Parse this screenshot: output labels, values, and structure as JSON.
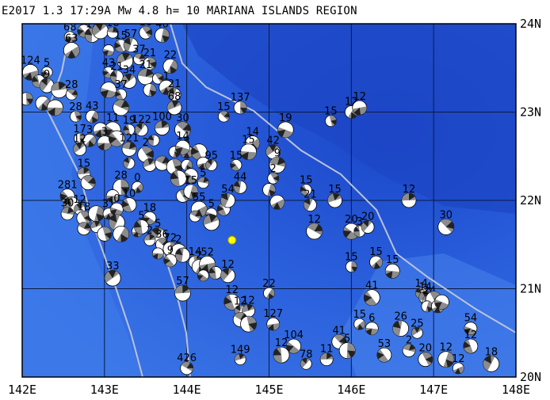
{
  "title": "E2017 1.3 17:29A Mw 4.8 h= 10 MARIANA ISLANDS REGION",
  "colors": {
    "sea_deep": "#1f4fd6",
    "sea_mid": "#2c64e0",
    "sea_shallow": "#4a86ee",
    "plate_boundary": "#b9c3da",
    "grid": "#0b1a40",
    "mechanism_compression": "#8c8c8c",
    "epicenter": "#ffff00"
  },
  "map": {
    "lon_min": 142,
    "lon_max": 148,
    "lat_min": 20,
    "lat_max": 24,
    "x_ticks": [
      "142E",
      "143E",
      "144E",
      "145E",
      "146E",
      "147E",
      "148E"
    ],
    "y_ticks": [
      "20N",
      "21N",
      "22N",
      "23N",
      "24N"
    ]
  },
  "epicenter": {
    "lon": 144.55,
    "lat": 21.55
  },
  "events": [
    {
      "lon": 142.58,
      "lat": 23.85,
      "label": "68"
    },
    {
      "lon": 142.75,
      "lat": 23.92,
      "label": "5"
    },
    {
      "lon": 142.85,
      "lat": 23.87,
      "label": "12"
    },
    {
      "lon": 142.95,
      "lat": 23.92,
      "label": "16"
    },
    {
      "lon": 143.1,
      "lat": 23.9,
      "label": "16"
    },
    {
      "lon": 143.5,
      "lat": 23.9,
      "label": "16"
    },
    {
      "lon": 143.7,
      "lat": 23.87,
      "label": "46"
    },
    {
      "lon": 142.6,
      "lat": 23.7,
      "label": "63"
    },
    {
      "lon": 143.05,
      "lat": 23.7,
      "label": ""
    },
    {
      "lon": 143.2,
      "lat": 23.75,
      "label": "15"
    },
    {
      "lon": 143.32,
      "lat": 23.76,
      "label": "57"
    },
    {
      "lon": 143.25,
      "lat": 23.58,
      "label": ""
    },
    {
      "lon": 143.42,
      "lat": 23.6,
      "label": "37"
    },
    {
      "lon": 143.55,
      "lat": 23.55,
      "label": "21"
    },
    {
      "lon": 143.8,
      "lat": 23.52,
      "label": "22"
    },
    {
      "lon": 142.1,
      "lat": 23.45,
      "label": "124"
    },
    {
      "lon": 142.3,
      "lat": 23.45,
      "label": "5"
    },
    {
      "lon": 142.2,
      "lat": 23.35,
      "label": ""
    },
    {
      "lon": 142.3,
      "lat": 23.3,
      "label": "9"
    },
    {
      "lon": 142.45,
      "lat": 23.25,
      "label": ""
    },
    {
      "lon": 142.6,
      "lat": 23.2,
      "label": "28"
    },
    {
      "lon": 142.05,
      "lat": 23.15,
      "label": ""
    },
    {
      "lon": 142.25,
      "lat": 23.1,
      "label": ""
    },
    {
      "lon": 142.4,
      "lat": 23.05,
      "label": ""
    },
    {
      "lon": 143.05,
      "lat": 23.45,
      "label": "43"
    },
    {
      "lon": 143.15,
      "lat": 23.4,
      "label": "21"
    },
    {
      "lon": 143.3,
      "lat": 23.35,
      "label": "34"
    },
    {
      "lon": 143.5,
      "lat": 23.4,
      "label": "21"
    },
    {
      "lon": 143.65,
      "lat": 23.38,
      "label": ""
    },
    {
      "lon": 143.55,
      "lat": 23.25,
      "label": ""
    },
    {
      "lon": 143.75,
      "lat": 23.28,
      "label": "1"
    },
    {
      "lon": 143.05,
      "lat": 23.25,
      "label": ""
    },
    {
      "lon": 143.2,
      "lat": 23.2,
      "label": "37"
    },
    {
      "lon": 143.85,
      "lat": 23.2,
      "label": "21"
    },
    {
      "lon": 143.85,
      "lat": 23.05,
      "label": "68"
    },
    {
      "lon": 143.2,
      "lat": 23.05,
      "label": ""
    },
    {
      "lon": 142.65,
      "lat": 22.95,
      "label": "28"
    },
    {
      "lon": 142.85,
      "lat": 22.95,
      "label": "43"
    },
    {
      "lon": 142.95,
      "lat": 22.8,
      "label": ""
    },
    {
      "lon": 143.1,
      "lat": 22.8,
      "label": "11"
    },
    {
      "lon": 143.3,
      "lat": 22.8,
      "label": "19"
    },
    {
      "lon": 143.45,
      "lat": 22.8,
      "label": "122"
    },
    {
      "lon": 143.7,
      "lat": 22.82,
      "label": "100"
    },
    {
      "lon": 143.95,
      "lat": 22.8,
      "label": "30"
    },
    {
      "lon": 142.7,
      "lat": 22.7,
      "label": "17"
    },
    {
      "lon": 142.82,
      "lat": 22.68,
      "label": "3"
    },
    {
      "lon": 143.0,
      "lat": 22.65,
      "label": "3"
    },
    {
      "lon": 143.15,
      "lat": 22.7,
      "label": ""
    },
    {
      "lon": 143.6,
      "lat": 22.68,
      "label": ""
    },
    {
      "lon": 142.7,
      "lat": 22.58,
      "label": "12"
    },
    {
      "lon": 143.3,
      "lat": 22.58,
      "label": "121"
    },
    {
      "lon": 143.5,
      "lat": 22.52,
      "label": "2"
    },
    {
      "lon": 143.85,
      "lat": 22.55,
      "label": ""
    },
    {
      "lon": 144.0,
      "lat": 22.55,
      "label": "8"
    },
    {
      "lon": 143.95,
      "lat": 22.6,
      "label": "14"
    },
    {
      "lon": 144.15,
      "lat": 22.55,
      "label": ""
    },
    {
      "lon": 143.3,
      "lat": 22.42,
      "label": ""
    },
    {
      "lon": 143.55,
      "lat": 22.4,
      "label": ""
    },
    {
      "lon": 143.7,
      "lat": 22.42,
      "label": ""
    },
    {
      "lon": 143.85,
      "lat": 22.38,
      "label": ""
    },
    {
      "lon": 144.0,
      "lat": 22.4,
      "label": ""
    },
    {
      "lon": 144.2,
      "lat": 22.42,
      "label": ""
    },
    {
      "lon": 144.05,
      "lat": 22.28,
      "label": ""
    },
    {
      "lon": 143.9,
      "lat": 22.25,
      "label": ""
    },
    {
      "lon": 144.3,
      "lat": 22.4,
      "label": "95"
    },
    {
      "lon": 142.75,
      "lat": 22.3,
      "label": "15"
    },
    {
      "lon": 142.8,
      "lat": 22.2,
      "label": ""
    },
    {
      "lon": 143.2,
      "lat": 22.15,
      "label": "28"
    },
    {
      "lon": 143.4,
      "lat": 22.15,
      "label": "0"
    },
    {
      "lon": 143.1,
      "lat": 22.05,
      "label": ""
    },
    {
      "lon": 142.55,
      "lat": 22.05,
      "label": "281"
    },
    {
      "lon": 142.6,
      "lat": 21.95,
      "label": ""
    },
    {
      "lon": 142.7,
      "lat": 21.9,
      "label": "12"
    },
    {
      "lon": 142.55,
      "lat": 21.85,
      "label": "30"
    },
    {
      "lon": 142.75,
      "lat": 21.8,
      "label": "18"
    },
    {
      "lon": 142.9,
      "lat": 21.85,
      "label": ""
    },
    {
      "lon": 143.05,
      "lat": 21.85,
      "label": "31"
    },
    {
      "lon": 143.15,
      "lat": 21.9,
      "label": "0"
    },
    {
      "lon": 143.3,
      "lat": 21.95,
      "label": "10"
    },
    {
      "lon": 143.15,
      "lat": 21.75,
      "label": ""
    },
    {
      "lon": 142.9,
      "lat": 21.7,
      "label": ""
    },
    {
      "lon": 142.75,
      "lat": 21.68,
      "label": ""
    },
    {
      "lon": 143.0,
      "lat": 21.62,
      "label": ""
    },
    {
      "lon": 143.2,
      "lat": 21.62,
      "label": ""
    },
    {
      "lon": 143.4,
      "lat": 21.65,
      "label": ""
    },
    {
      "lon": 143.55,
      "lat": 21.8,
      "label": "18"
    },
    {
      "lon": 143.45,
      "lat": 21.7,
      "label": "5"
    },
    {
      "lon": 143.65,
      "lat": 21.6,
      "label": "5"
    },
    {
      "lon": 143.55,
      "lat": 21.55,
      "label": "2"
    },
    {
      "lon": 143.7,
      "lat": 21.5,
      "label": "36"
    },
    {
      "lon": 143.8,
      "lat": 21.45,
      "label": "72"
    },
    {
      "lon": 143.9,
      "lat": 21.42,
      "label": "2"
    },
    {
      "lon": 143.65,
      "lat": 21.4,
      "label": ""
    },
    {
      "lon": 143.8,
      "lat": 21.32,
      "label": "9"
    },
    {
      "lon": 143.95,
      "lat": 21.38,
      "label": ""
    },
    {
      "lon": 143.1,
      "lat": 21.12,
      "label": "33"
    },
    {
      "lon": 144.2,
      "lat": 22.2,
      "label": "5"
    },
    {
      "lon": 143.95,
      "lat": 22.05,
      "label": ""
    },
    {
      "lon": 144.05,
      "lat": 22.1,
      "label": "15"
    },
    {
      "lon": 144.15,
      "lat": 21.9,
      "label": "55"
    },
    {
      "lon": 144.3,
      "lat": 21.85,
      "label": "5"
    },
    {
      "lon": 144.45,
      "lat": 21.9,
      "label": "2"
    },
    {
      "lon": 144.5,
      "lat": 22.0,
      "label": "54"
    },
    {
      "lon": 144.3,
      "lat": 21.75,
      "label": ""
    },
    {
      "lon": 144.1,
      "lat": 21.82,
      "label": ""
    },
    {
      "lon": 144.1,
      "lat": 21.3,
      "label": "14"
    },
    {
      "lon": 144.15,
      "lat": 21.25,
      "label": "2"
    },
    {
      "lon": 144.25,
      "lat": 21.28,
      "label": "52"
    },
    {
      "lon": 144.2,
      "lat": 21.15,
      "label": ""
    },
    {
      "lon": 144.35,
      "lat": 21.18,
      "label": ""
    },
    {
      "lon": 144.5,
      "lat": 21.15,
      "label": "12"
    },
    {
      "lon": 143.95,
      "lat": 20.95,
      "label": "57"
    },
    {
      "lon": 144.45,
      "lat": 22.95,
      "label": "15"
    },
    {
      "lon": 144.65,
      "lat": 23.05,
      "label": "137"
    },
    {
      "lon": 144.8,
      "lat": 22.65,
      "label": "14"
    },
    {
      "lon": 144.75,
      "lat": 22.55,
      "label": "15"
    },
    {
      "lon": 144.6,
      "lat": 22.4,
      "label": "15"
    },
    {
      "lon": 144.65,
      "lat": 22.15,
      "label": "44"
    },
    {
      "lon": 145.05,
      "lat": 22.55,
      "label": "42"
    },
    {
      "lon": 145.1,
      "lat": 22.4,
      "label": "9"
    },
    {
      "lon": 145.05,
      "lat": 22.25,
      "label": "2"
    },
    {
      "lon": 145.0,
      "lat": 22.12,
      "label": ""
    },
    {
      "lon": 145.1,
      "lat": 21.98,
      "label": ""
    },
    {
      "lon": 145.2,
      "lat": 22.8,
      "label": "19"
    },
    {
      "lon": 145.45,
      "lat": 22.12,
      "label": "15"
    },
    {
      "lon": 145.5,
      "lat": 21.95,
      "label": "21"
    },
    {
      "lon": 145.8,
      "lat": 22.0,
      "label": "15"
    },
    {
      "lon": 145.55,
      "lat": 21.65,
      "label": "12"
    },
    {
      "lon": 145.75,
      "lat": 22.9,
      "label": "15"
    },
    {
      "lon": 146.0,
      "lat": 23.0,
      "label": "12"
    },
    {
      "lon": 146.1,
      "lat": 23.05,
      "label": "12"
    },
    {
      "lon": 146.0,
      "lat": 21.65,
      "label": "20"
    },
    {
      "lon": 146.1,
      "lat": 21.65,
      "label": "3"
    },
    {
      "lon": 146.2,
      "lat": 21.7,
      "label": "20"
    },
    {
      "lon": 146.7,
      "lat": 22.0,
      "label": "12"
    },
    {
      "lon": 147.15,
      "lat": 21.7,
      "label": "30"
    },
    {
      "lon": 146.0,
      "lat": 21.25,
      "label": "15"
    },
    {
      "lon": 146.3,
      "lat": 21.3,
      "label": "15"
    },
    {
      "lon": 146.5,
      "lat": 21.2,
      "label": "15"
    },
    {
      "lon": 146.25,
      "lat": 20.9,
      "label": "41"
    },
    {
      "lon": 146.85,
      "lat": 20.95,
      "label": "14"
    },
    {
      "lon": 146.9,
      "lat": 20.9,
      "label": "14"
    },
    {
      "lon": 146.95,
      "lat": 20.85,
      "label": "24"
    },
    {
      "lon": 147.0,
      "lat": 20.88,
      "label": ""
    },
    {
      "lon": 146.92,
      "lat": 20.8,
      "label": ""
    },
    {
      "lon": 147.05,
      "lat": 20.8,
      "label": ""
    },
    {
      "lon": 147.1,
      "lat": 20.85,
      "label": ""
    },
    {
      "lon": 144.55,
      "lat": 20.85,
      "label": "12"
    },
    {
      "lon": 144.65,
      "lat": 20.75,
      "label": "12"
    },
    {
      "lon": 144.75,
      "lat": 20.75,
      "label": "12"
    },
    {
      "lon": 144.65,
      "lat": 20.65,
      "label": ""
    },
    {
      "lon": 144.75,
      "lat": 20.6,
      "label": ""
    },
    {
      "lon": 145.0,
      "lat": 20.95,
      "label": "22"
    },
    {
      "lon": 145.05,
      "lat": 20.6,
      "label": "127"
    },
    {
      "lon": 145.3,
      "lat": 20.35,
      "label": "104"
    },
    {
      "lon": 145.15,
      "lat": 20.25,
      "label": "12"
    },
    {
      "lon": 145.45,
      "lat": 20.15,
      "label": "78"
    },
    {
      "lon": 145.7,
      "lat": 20.2,
      "label": "11"
    },
    {
      "lon": 145.85,
      "lat": 20.4,
      "label": "41"
    },
    {
      "lon": 145.95,
      "lat": 20.3,
      "label": "5"
    },
    {
      "lon": 146.1,
      "lat": 20.6,
      "label": "15"
    },
    {
      "lon": 146.25,
      "lat": 20.55,
      "label": "6"
    },
    {
      "lon": 146.4,
      "lat": 20.25,
      "label": "53"
    },
    {
      "lon": 146.6,
      "lat": 20.55,
      "label": "26"
    },
    {
      "lon": 146.8,
      "lat": 20.5,
      "label": "25"
    },
    {
      "lon": 146.7,
      "lat": 20.3,
      "label": "2"
    },
    {
      "lon": 146.9,
      "lat": 20.2,
      "label": "20"
    },
    {
      "lon": 147.15,
      "lat": 20.2,
      "label": "12"
    },
    {
      "lon": 147.3,
      "lat": 20.1,
      "label": "12"
    },
    {
      "lon": 147.45,
      "lat": 20.55,
      "label": "54"
    },
    {
      "lon": 147.45,
      "lat": 20.35,
      "label": "12"
    },
    {
      "lon": 147.7,
      "lat": 20.15,
      "label": "18"
    },
    {
      "lon": 144.65,
      "lat": 20.2,
      "label": "149"
    },
    {
      "lon": 144.0,
      "lat": 20.1,
      "label": "426"
    }
  ]
}
